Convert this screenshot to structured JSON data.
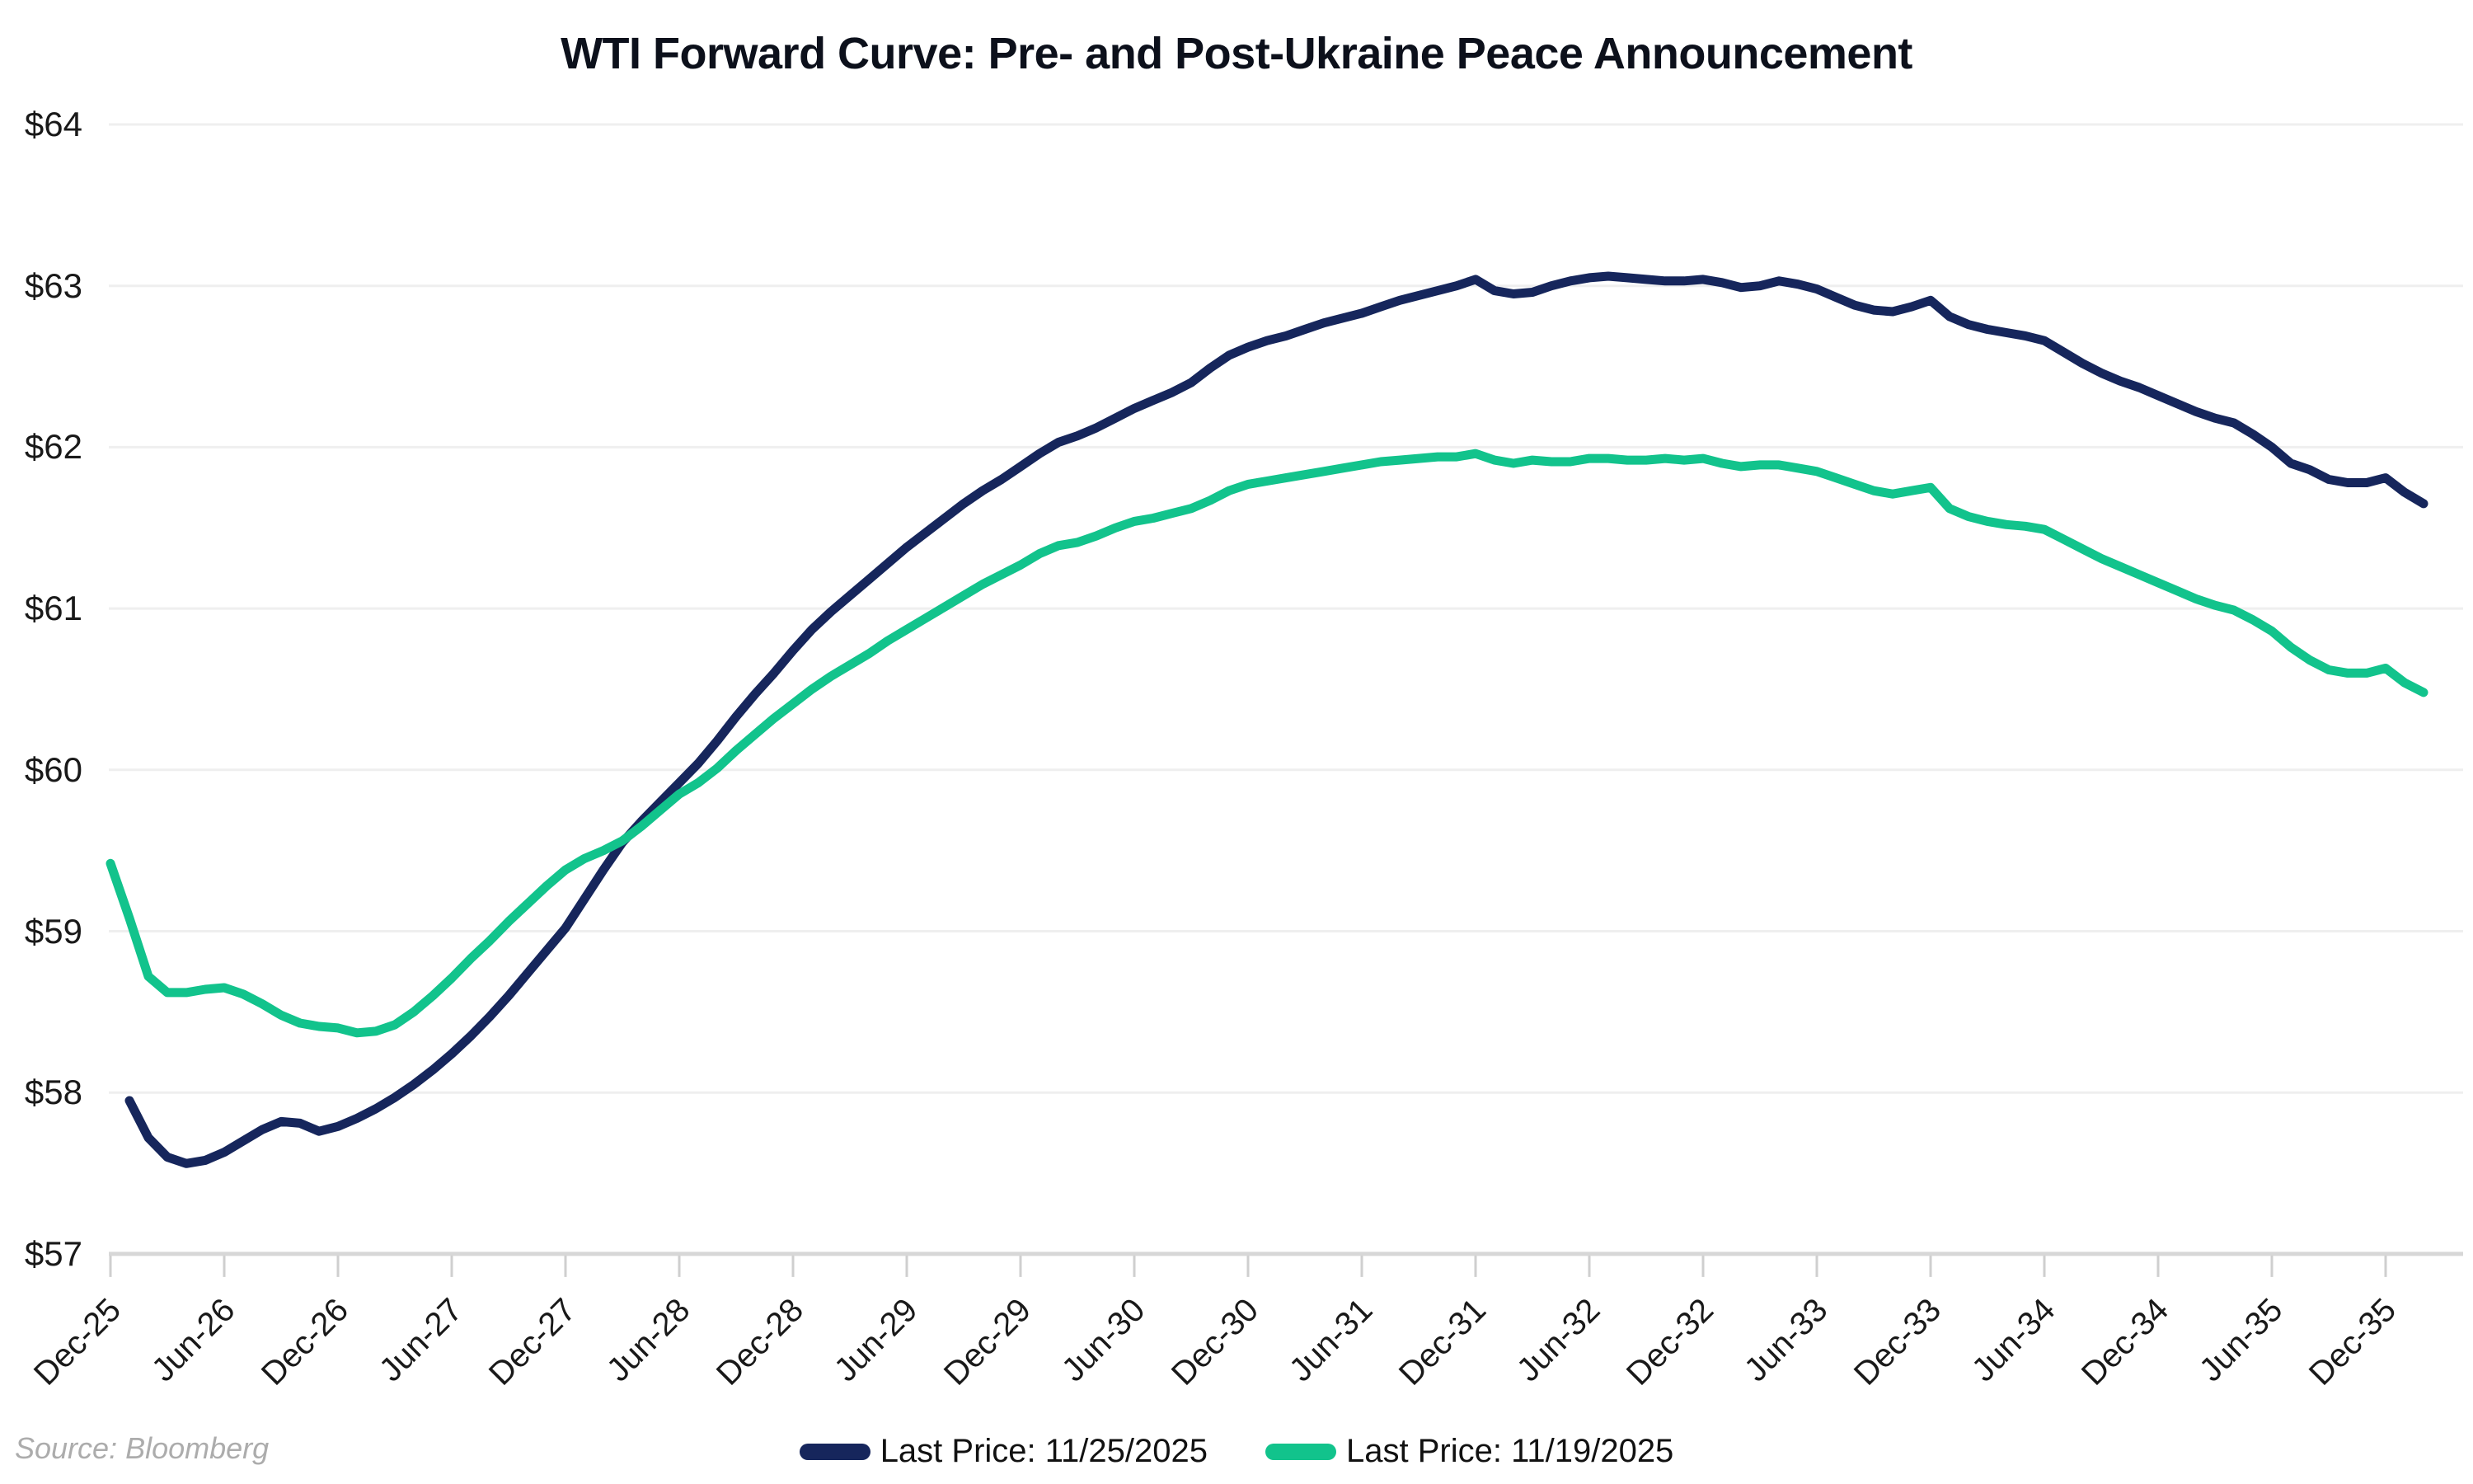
{
  "source_note": "Source: Bloomberg",
  "colors": {
    "navy": "#16265C",
    "green": "#12C38C",
    "grid": "#EFEFEF",
    "axis": "#D7D7D7",
    "tick_mark": "#CFCFCF",
    "tick_text": "#191919",
    "title_text": "#0C101B",
    "source_text": "#ACACAC"
  },
  "chart_data": {
    "type": "line",
    "title": "WTI Forward Curve: Pre- and Post-Ukraine Peace Announcement",
    "xlabel": "",
    "ylabel": "",
    "ylim": [
      57,
      64
    ],
    "y_tick_values": [
      57,
      58,
      59,
      60,
      61,
      62,
      63,
      64
    ],
    "y_tick_labels": [
      "$57",
      "$58",
      "$59",
      "$60",
      "$61",
      "$62",
      "$63",
      "$64"
    ],
    "x_unit": "contract month (months after Dec-2025)",
    "x_tick_every_months": 6,
    "x_tick_labels": [
      "Dec-25",
      "Jun-26",
      "Dec-26",
      "Jun-27",
      "Dec-27",
      "Jun-28",
      "Dec-28",
      "Jun-29",
      "Dec-29",
      "Jun-30",
      "Dec-30",
      "Jun-31",
      "Dec-31",
      "Jun-32",
      "Dec-32",
      "Jun-33",
      "Dec-33",
      "Jun-34",
      "Dec-34",
      "Jun-35",
      "Dec-35"
    ],
    "grid": "horizontal",
    "legend_position": "bottom-center",
    "series": [
      {
        "name": "Last Price: 11/25/2025",
        "color_key": "navy",
        "start_month": 1,
        "values": [
          57.95,
          57.72,
          57.6,
          57.56,
          57.58,
          57.63,
          57.7,
          57.77,
          57.82,
          57.81,
          57.76,
          57.79,
          57.84,
          57.9,
          57.97,
          58.05,
          58.14,
          58.24,
          58.35,
          58.47,
          58.6,
          58.74,
          58.88,
          59.02,
          59.2,
          59.38,
          59.55,
          59.68,
          59.8,
          59.92,
          60.04,
          60.18,
          60.33,
          60.47,
          60.6,
          60.74,
          60.87,
          60.98,
          61.08,
          61.18,
          61.28,
          61.38,
          61.47,
          61.56,
          61.65,
          61.73,
          61.8,
          61.88,
          61.96,
          62.03,
          62.07,
          62.12,
          62.18,
          62.24,
          62.29,
          62.34,
          62.4,
          62.49,
          62.57,
          62.62,
          62.66,
          62.69,
          62.73,
          62.77,
          62.8,
          62.83,
          62.87,
          62.91,
          62.94,
          62.97,
          63.0,
          63.04,
          62.97,
          62.95,
          62.96,
          63.0,
          63.03,
          63.05,
          63.06,
          63.05,
          63.04,
          63.03,
          63.03,
          63.04,
          63.02,
          62.99,
          63.0,
          63.03,
          63.01,
          62.98,
          62.93,
          62.88,
          62.85,
          62.84,
          62.87,
          62.91,
          62.81,
          62.76,
          62.73,
          62.71,
          62.69,
          62.66,
          62.59,
          62.52,
          62.46,
          62.41,
          62.37,
          62.32,
          62.27,
          62.22,
          62.18,
          62.15,
          62.08,
          62.0,
          61.9,
          61.86,
          61.8,
          61.78,
          61.78,
          61.81,
          61.72,
          61.65
        ]
      },
      {
        "name": "Last Price: 11/19/2025",
        "color_key": "green",
        "start_month": 0,
        "values": [
          59.42,
          59.08,
          58.72,
          58.62,
          58.62,
          58.64,
          58.65,
          58.61,
          58.55,
          58.48,
          58.43,
          58.41,
          58.4,
          58.37,
          58.38,
          58.42,
          58.5,
          58.6,
          58.71,
          58.83,
          58.94,
          59.06,
          59.17,
          59.28,
          59.38,
          59.45,
          59.5,
          59.56,
          59.65,
          59.75,
          59.85,
          59.92,
          60.01,
          60.12,
          60.22,
          60.32,
          60.41,
          60.5,
          60.58,
          60.65,
          60.72,
          60.8,
          60.87,
          60.94,
          61.01,
          61.08,
          61.15,
          61.21,
          61.27,
          61.34,
          61.39,
          61.41,
          61.45,
          61.5,
          61.54,
          61.56,
          61.59,
          61.62,
          61.67,
          61.73,
          61.77,
          61.79,
          61.81,
          61.83,
          61.85,
          61.87,
          61.89,
          61.91,
          61.92,
          61.93,
          61.94,
          61.94,
          61.96,
          61.92,
          61.9,
          61.92,
          61.91,
          61.91,
          61.93,
          61.93,
          61.92,
          61.92,
          61.93,
          61.92,
          61.93,
          61.9,
          61.88,
          61.89,
          61.89,
          61.87,
          61.85,
          61.81,
          61.77,
          61.73,
          61.71,
          61.73,
          61.75,
          61.62,
          61.57,
          61.54,
          61.52,
          61.51,
          61.49,
          61.43,
          61.37,
          61.31,
          61.26,
          61.21,
          61.16,
          61.11,
          61.06,
          61.02,
          60.99,
          60.93,
          60.86,
          60.76,
          60.68,
          60.62,
          60.6,
          60.6,
          60.63,
          60.54,
          60.48
        ]
      }
    ]
  }
}
